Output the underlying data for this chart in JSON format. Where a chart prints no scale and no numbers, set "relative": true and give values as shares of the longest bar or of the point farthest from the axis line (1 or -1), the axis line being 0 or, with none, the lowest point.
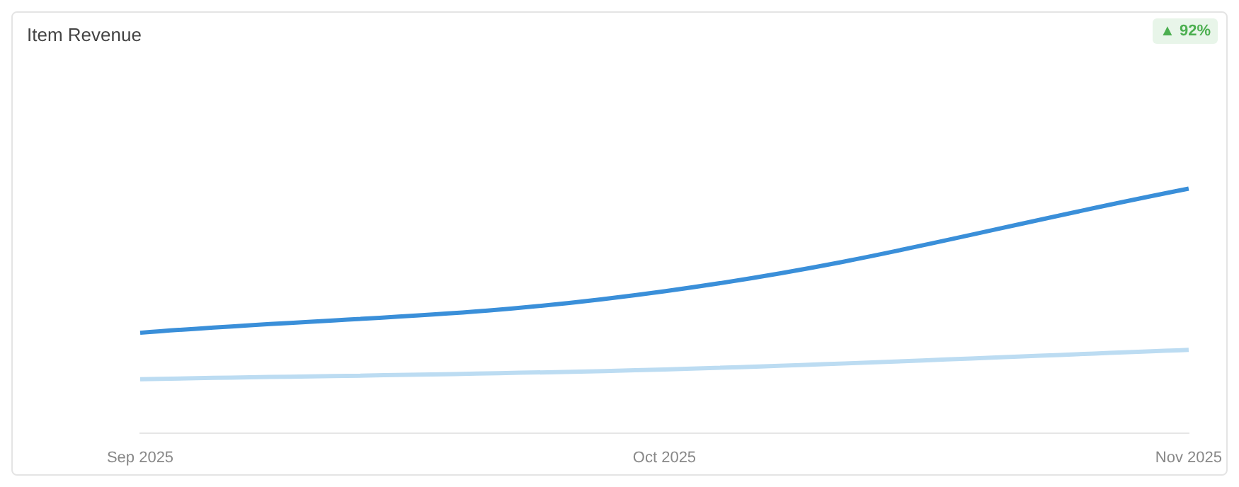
{
  "chart_data": {
    "type": "line",
    "title": "Item Revenue",
    "annotations": [
      "▲ 92%"
    ],
    "categories": [
      "Sep 2025",
      "Oct 2025",
      "Nov 2025"
    ],
    "relative": true,
    "series": [
      {
        "color": "#3a8fd9",
        "values": [
          0.41,
          0.58,
          1
        ]
      },
      {
        "color": "#bcdcf2",
        "values": [
          0.22,
          0.26,
          0.34
        ]
      }
    ],
    "grid": false,
    "legend": false,
    "marker": "none",
    "line_style": "solid"
  }
}
